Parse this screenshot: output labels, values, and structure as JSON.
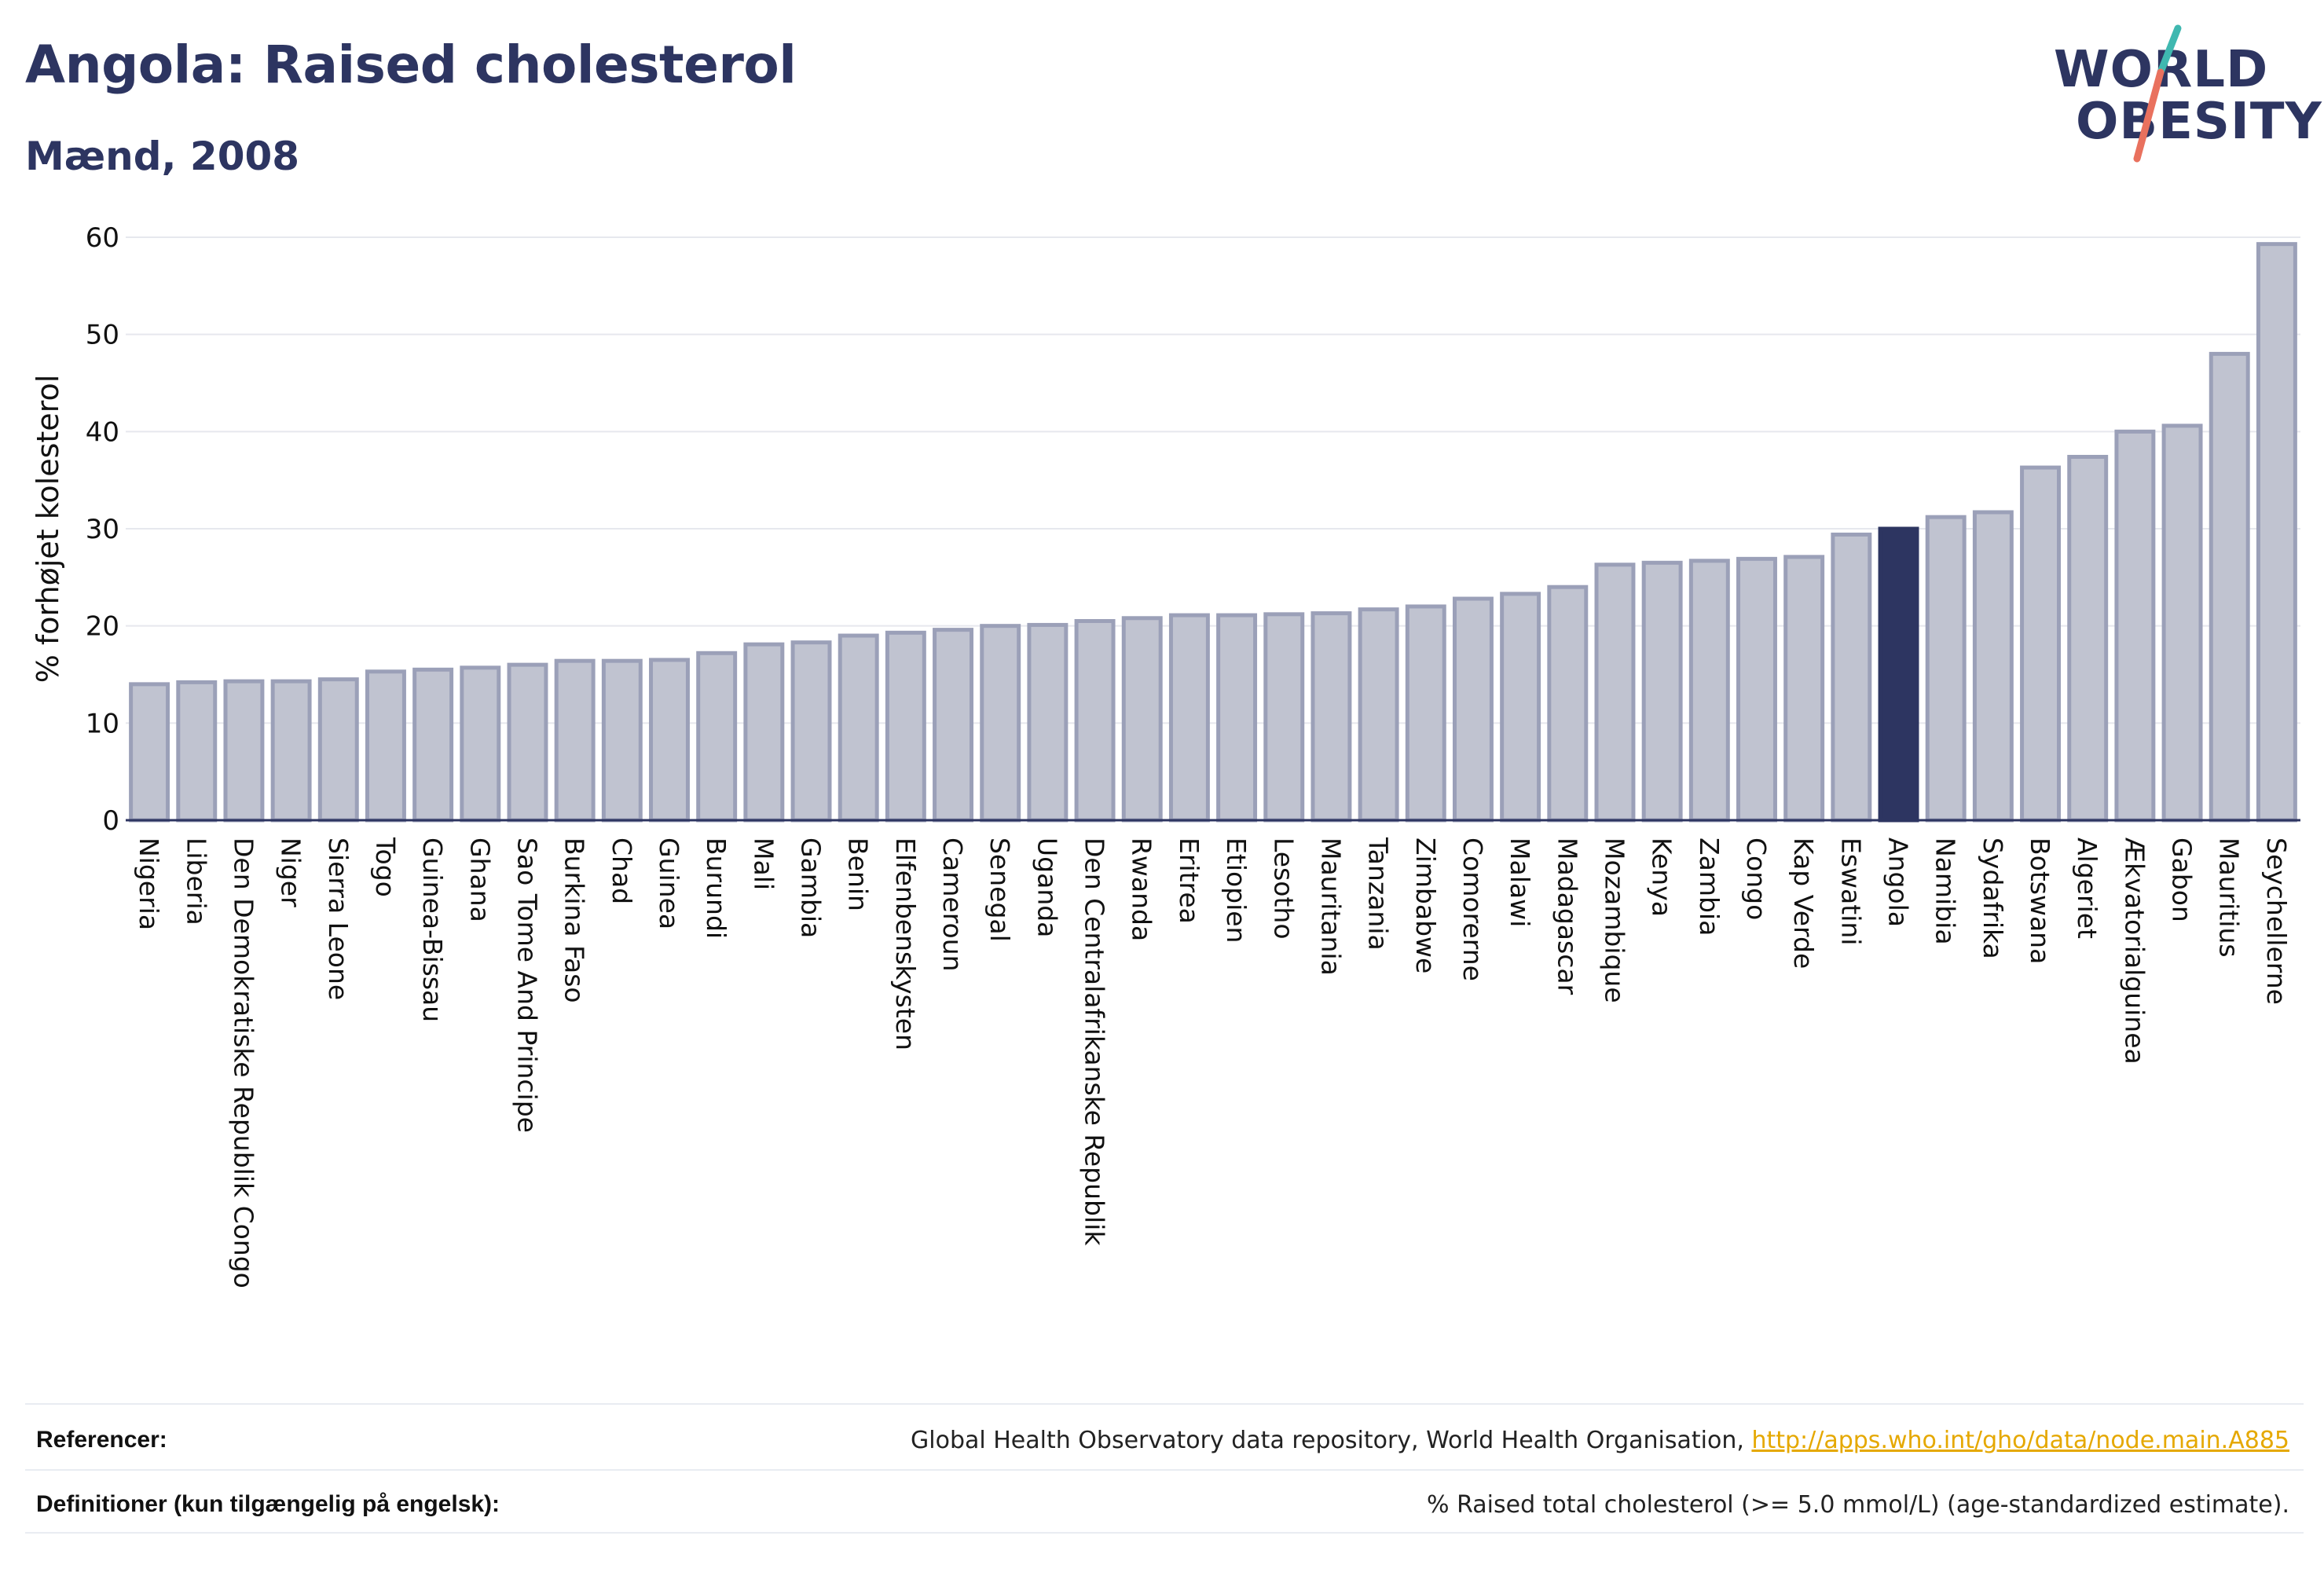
{
  "header": {
    "title": "Angola: Raised cholesterol",
    "subtitle": "Mænd, 2008"
  },
  "logo": {
    "line1": "WORLD",
    "line2": "OBESITY",
    "slash_colors": [
      "#3fb8b0",
      "#e9715e"
    ]
  },
  "colors": {
    "bar_default": "#c0c3d0",
    "bar_border": "#9ba0b8",
    "bar_highlight": "#2d3561",
    "title": "#2d3561",
    "link": "#e5a800"
  },
  "chart_data": {
    "type": "bar",
    "ylabel": "% forhøjet kolesterol",
    "ylim": [
      0,
      60
    ],
    "yticks": [
      0,
      10,
      20,
      30,
      40,
      50,
      60
    ],
    "highlight": "Angola",
    "grid": true,
    "categories": [
      "Nigeria",
      "Liberia",
      "Den Demokratiske Republik Congo",
      "Niger",
      "Sierra Leone",
      "Togo",
      "Guinea-Bissau",
      "Ghana",
      "Sao Tome And Principe",
      "Burkina Faso",
      "Chad",
      "Guinea",
      "Burundi",
      "Mali",
      "Gambia",
      "Benin",
      "Elfenbenskysten",
      "Cameroun",
      "Senegal",
      "Uganda",
      "Den Centralafrikanske Republik",
      "Rwanda",
      "Eritrea",
      "Etiopien",
      "Lesotho",
      "Mauritania",
      "Tanzania",
      "Zimbabwe",
      "Comorerne",
      "Malawi",
      "Madagascar",
      "Mozambique",
      "Kenya",
      "Zambia",
      "Congo",
      "Kap Verde",
      "Eswatini",
      "Angola",
      "Namibia",
      "Sydafrika",
      "Botswana",
      "Algeriet",
      "Ækvatorialguinea",
      "Gabon",
      "Mauritius",
      "Seychellerne"
    ],
    "values": [
      14.0,
      14.2,
      14.3,
      14.3,
      14.5,
      15.3,
      15.5,
      15.7,
      16.0,
      16.4,
      16.4,
      16.5,
      17.2,
      18.1,
      18.3,
      19.0,
      19.3,
      19.6,
      20.0,
      20.1,
      20.5,
      20.8,
      21.1,
      21.1,
      21.2,
      21.3,
      21.7,
      22.0,
      22.8,
      23.3,
      24.0,
      26.3,
      26.5,
      26.7,
      26.9,
      27.1,
      29.4,
      30.0,
      31.2,
      31.7,
      36.3,
      37.4,
      40.0,
      40.6,
      48.0,
      59.3
    ]
  },
  "footer": {
    "references_label": "Referencer:",
    "references_text": "Global Health Observatory data repository, World Health Organisation, ",
    "references_link": "http://apps.who.int/gho/data/node.main.A885",
    "definitions_label": "Definitioner (kun tilgængelig på engelsk):",
    "definitions_text": "% Raised total cholesterol (>= 5.0 mmol/L) (age-standardized estimate)."
  }
}
